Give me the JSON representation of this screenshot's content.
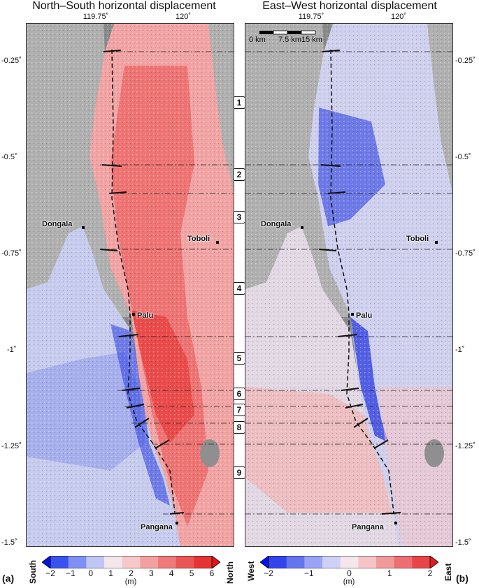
{
  "panels": [
    {
      "id": "a",
      "title": "North–South horizontal displacement",
      "panel_label": "(a)",
      "lon_ticks": [
        "119.75˚",
        "120˚"
      ],
      "colorbar": {
        "min_label": "South",
        "max_label": "North",
        "ticks": [
          "−2",
          "−1",
          "0",
          "1",
          "2",
          "3",
          "4",
          "5",
          "6"
        ],
        "unit": "(m)",
        "range": [
          -2,
          6
        ],
        "colors": [
          "#0015e6",
          "#3a52ee",
          "#7f8ff3",
          "#bfc6f6",
          "#f4e6ea",
          "#f7c8c8",
          "#f3a0a0",
          "#ef7a7a",
          "#ea5656",
          "#e63434",
          "#e51515"
        ]
      }
    },
    {
      "id": "b",
      "title": "East–West horizontal displacement",
      "panel_label": "(b)",
      "lon_ticks": [
        "119.75˚",
        "120˚"
      ],
      "scale_bar": [
        "0 km",
        "7.5 km",
        "15 km"
      ],
      "colorbar": {
        "min_label": "West",
        "max_label": "East",
        "ticks": [
          "−2",
          "−1",
          "0",
          "1",
          "2"
        ],
        "unit": "(m)",
        "range": [
          -2,
          2
        ],
        "colors": [
          "#0015e6",
          "#3345ea",
          "#6574ef",
          "#9aa3f4",
          "#cdd1f8",
          "#f4e6ea",
          "#f6c4c6",
          "#f19a9c",
          "#ec6f72",
          "#e8454a",
          "#e51a20"
        ]
      }
    }
  ],
  "lat_ticks": [
    "-0.25˚",
    "-0.5˚",
    "-0.75˚",
    "-1˚",
    "-1.25˚",
    "-1.5˚"
  ],
  "segments": [
    "1",
    "2",
    "3",
    "4",
    "5",
    "6",
    "7",
    "8",
    "9"
  ],
  "towns": [
    "Dongala",
    "Toboli",
    "Palu",
    "Pangana"
  ],
  "colors": {
    "land": "#8f8f8f",
    "sea": "#b4b4b4",
    "north_red": "#ef6a6a",
    "south_blue": "#2f3fe0",
    "fault": "#111111"
  }
}
